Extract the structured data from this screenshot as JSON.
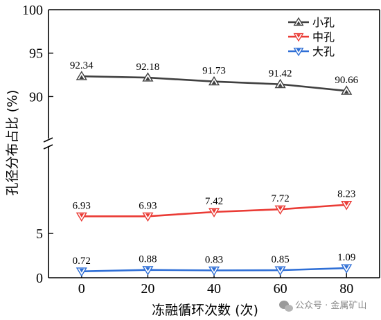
{
  "chart_data": {
    "type": "line",
    "x": [
      0,
      20,
      40,
      60,
      80
    ],
    "xlabel": "冻融循环次数 (次)",
    "ylabel": "孔径分布占比 (%)",
    "xlim": [
      -10,
      90
    ],
    "y_axis_break": true,
    "y_upper_ticks": [
      "90",
      "95",
      "100"
    ],
    "y_lower_ticks": [
      "0",
      "5"
    ],
    "x_ticks": [
      "0",
      "20",
      "40",
      "60",
      "80"
    ],
    "legend_position": "top-right",
    "series": [
      {
        "name": "小孔",
        "color": "#404040",
        "marker": "triangle-up",
        "values": [
          92.34,
          92.18,
          91.73,
          91.42,
          90.66
        ],
        "labels": [
          "92.34",
          "92.18",
          "91.73",
          "91.42",
          "90.66"
        ]
      },
      {
        "name": "中孔",
        "color": "#ea3b35",
        "marker": "triangle-down",
        "values": [
          6.93,
          6.93,
          7.42,
          7.72,
          8.23
        ],
        "labels": [
          "6.93",
          "6.93",
          "7.42",
          "7.72",
          "8.23"
        ]
      },
      {
        "name": "大孔",
        "color": "#2f6fd6",
        "marker": "triangle-down",
        "values": [
          0.72,
          0.88,
          0.83,
          0.85,
          1.09
        ],
        "labels": [
          "0.72",
          "0.88",
          "0.83",
          "0.85",
          "1.09"
        ]
      }
    ]
  },
  "watermark": {
    "text": "公众号 · 金属矿山",
    "icon": "wechat-icon"
  }
}
